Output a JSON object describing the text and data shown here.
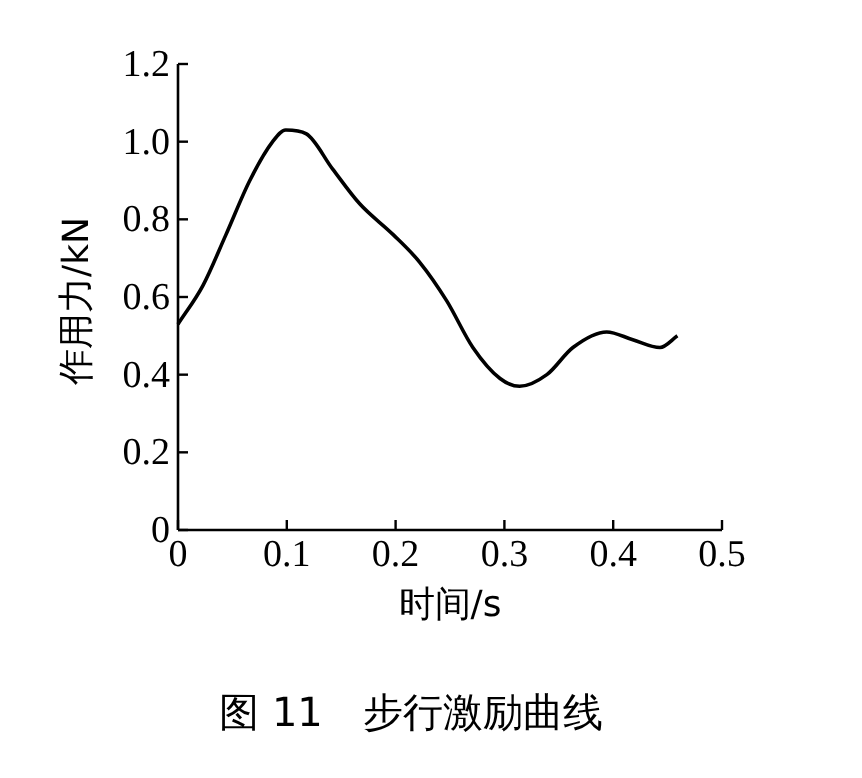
{
  "chart_data": {
    "type": "line",
    "annotations": [
      "图 11　步行激励曲线"
    ],
    "xlabel": "时间/s",
    "ylabel": "作用力/kN",
    "xlim": [
      0,
      0.5
    ],
    "ylim": [
      0,
      1.2
    ],
    "xticks": [
      0,
      0.1,
      0.2,
      0.3,
      0.4,
      0.5
    ],
    "yticks": [
      0,
      0.2,
      0.4,
      0.6,
      0.8,
      {
        "value": 1,
        "label": "1.0"
      },
      1.2
    ],
    "grid": false,
    "marker": "none",
    "line_style": "solid",
    "series": [
      {
        "color": "#000000",
        "x": [
          0,
          0.023,
          0.044,
          0.066,
          0.087,
          0.099,
          0.118,
          0.142,
          0.167,
          0.198,
          0.222,
          0.247,
          0.271,
          0.296,
          0.314,
          0.339,
          0.363,
          0.394,
          0.418,
          0.443,
          0.459
        ],
        "values": [
          0.53,
          0.63,
          0.76,
          0.9,
          1.0,
          1.03,
          1.02,
          0.93,
          0.84,
          0.76,
          0.69,
          0.59,
          0.47,
          0.39,
          0.37,
          0.4,
          0.47,
          0.51,
          0.49,
          0.47,
          0.5
        ]
      }
    ]
  }
}
